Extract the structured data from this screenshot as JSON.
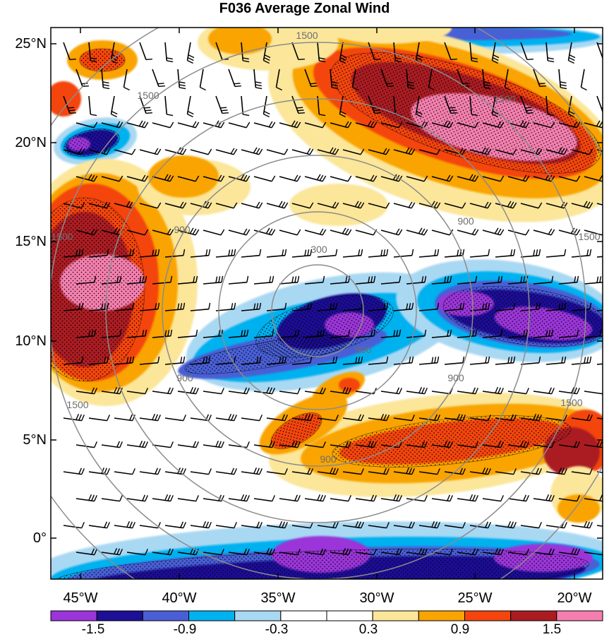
{
  "title": "F036 Average Zonal Wind",
  "lat_labels": [
    "25°N",
    "20°N",
    "15°N",
    "10°N",
    "5°N",
    "0°"
  ],
  "lon_labels": [
    "45°W",
    "40°W",
    "35°W",
    "30°W",
    "25°W",
    "20°W"
  ],
  "contour_labels": [
    "300",
    "900",
    "900",
    "900",
    "900",
    "900",
    "900",
    "1500",
    "1500",
    "1500",
    "1500",
    "1500",
    "1500",
    "1500"
  ],
  "colorbar": {
    "labels": [
      "-1.5",
      "-0.9",
      "-0.3",
      "0.3",
      "0.9",
      "1.5"
    ],
    "colors": [
      "#9b35d9",
      "#1d0f96",
      "#4a5fd6",
      "#00b1ef",
      "#a9d8f3",
      "#ffffff",
      "#ffffff",
      "#fbe69a",
      "#f9a400",
      "#f4450f",
      "#ab1b22",
      "#f47fae"
    ]
  },
  "colors": {
    "neg_strong": "#9b35d9",
    "neg_dark": "#1d0f96",
    "neg_mid": "#4a5fd6",
    "neg_cyan": "#00b1ef",
    "neg_light": "#a9d8f3",
    "pos_light": "#fbe69a",
    "pos_orange": "#f9a400",
    "pos_red": "#f4450f",
    "pos_dark": "#ab1b22",
    "pos_pink": "#f47fae",
    "range_ring": "#8c8c8c"
  }
}
